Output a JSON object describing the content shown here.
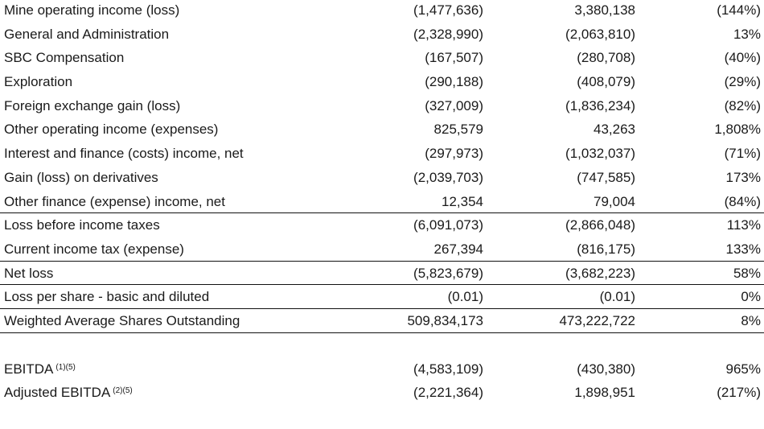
{
  "rows": [
    {
      "label": "Mine operating income (loss)",
      "v1": "(1,477,636)",
      "v2": "3,380,138",
      "pct": "(144%)"
    },
    {
      "label": "General and Administration",
      "v1": "(2,328,990)",
      "v2": "(2,063,810)",
      "pct": "13%"
    },
    {
      "label": "SBC Compensation",
      "v1": "(167,507)",
      "v2": "(280,708)",
      "pct": "(40%)"
    },
    {
      "label": "Exploration",
      "v1": "(290,188)",
      "v2": "(408,079)",
      "pct": "(29%)"
    },
    {
      "label": "Foreign exchange gain (loss)",
      "v1": "(327,009)",
      "v2": "(1,836,234)",
      "pct": "(82%)"
    },
    {
      "label": "Other operating income (expenses)",
      "v1": "825,579",
      "v2": "43,263",
      "pct": "1,808%"
    },
    {
      "label": "Interest and finance (costs) income, net",
      "v1": "(297,973)",
      "v2": "(1,032,037)",
      "pct": "(71%)"
    },
    {
      "label": "Gain (loss) on derivatives",
      "v1": "(2,039,703)",
      "v2": "(747,585)",
      "pct": "173%"
    },
    {
      "label": "Other finance (expense) income, net",
      "v1": "12,354",
      "v2": "79,004",
      "pct": "(84%)"
    },
    {
      "label": "Loss before income taxes",
      "v1": "(6,091,073)",
      "v2": "(2,866,048)",
      "pct": "113%"
    },
    {
      "label": "Current income tax (expense)",
      "v1": "267,394",
      "v2": "(816,175)",
      "pct": "133%"
    },
    {
      "label": "Net loss",
      "v1": "(5,823,679)",
      "v2": "(3,682,223)",
      "pct": "58%"
    },
    {
      "label": "Loss per share - basic and diluted",
      "v1": "(0.01)",
      "v2": "(0.01)",
      "pct": "0%"
    },
    {
      "label": "Weighted Average Shares Outstanding",
      "v1": "509,834,173",
      "v2": "473,222,722",
      "pct": "8%"
    }
  ],
  "ebitda": [
    {
      "label": "EBITDA",
      "notes": "(1)(5)",
      "v1": "(4,583,109)",
      "v2": "(430,380)",
      "pct": "965%"
    },
    {
      "label": "Adjusted EBITDA",
      "notes": "(2)(5)",
      "v1": "(2,221,364)",
      "v2": "1,898,951",
      "pct": "(217%)"
    }
  ]
}
